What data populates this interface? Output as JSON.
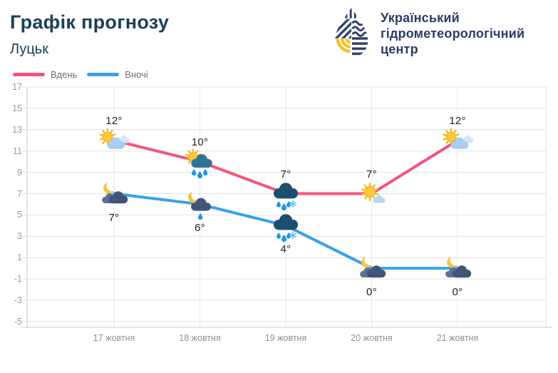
{
  "header": {
    "title": "Графік прогнозу",
    "subtitle": "Луцьк"
  },
  "logo": {
    "icon": "uhmc-drop-logo",
    "org_lines": [
      "Український",
      "гідрометеорологічний",
      "центр"
    ],
    "navy": "#2e3f67",
    "yellow": "#f6bf26"
  },
  "legend": [
    {
      "label": "Вдень",
      "color": "#f4547b"
    },
    {
      "label": "Вночі",
      "color": "#3aa0e8"
    }
  ],
  "chart_data": {
    "type": "line",
    "categories": [
      "17 жовтня",
      "18 жовтня",
      "19 жовтня",
      "20 жовтня",
      "21 жовтня"
    ],
    "series": [
      {
        "name": "Вдень",
        "color": "#f4547b",
        "values": [
          12,
          10,
          7,
          7,
          12
        ],
        "labels": [
          "12°",
          "10°",
          "7°",
          "7°",
          "12°"
        ],
        "label_position": "above",
        "icons": [
          "sun-light-cloud",
          "sun-rain-cloud",
          "rain-snow-cloud",
          "sun-small-cloud",
          "sun-light-cloud"
        ]
      },
      {
        "name": "Вночі",
        "color": "#3aa0e8",
        "values": [
          7,
          6,
          4,
          0,
          0
        ],
        "labels": [
          "7°",
          "6°",
          "4°",
          "0°",
          "0°"
        ],
        "label_position": "below",
        "icons": [
          "moon-cloud",
          "moon-rain-cloud",
          "rain-snow-cloud",
          "moon-cloud",
          "moon-cloud"
        ]
      }
    ],
    "yticks": [
      17,
      15,
      13,
      11,
      9,
      7,
      5,
      3,
      1,
      -1,
      -3,
      -5
    ],
    "ylim": [
      -5.5,
      17
    ],
    "grid": true,
    "legend_position": "top-left"
  }
}
